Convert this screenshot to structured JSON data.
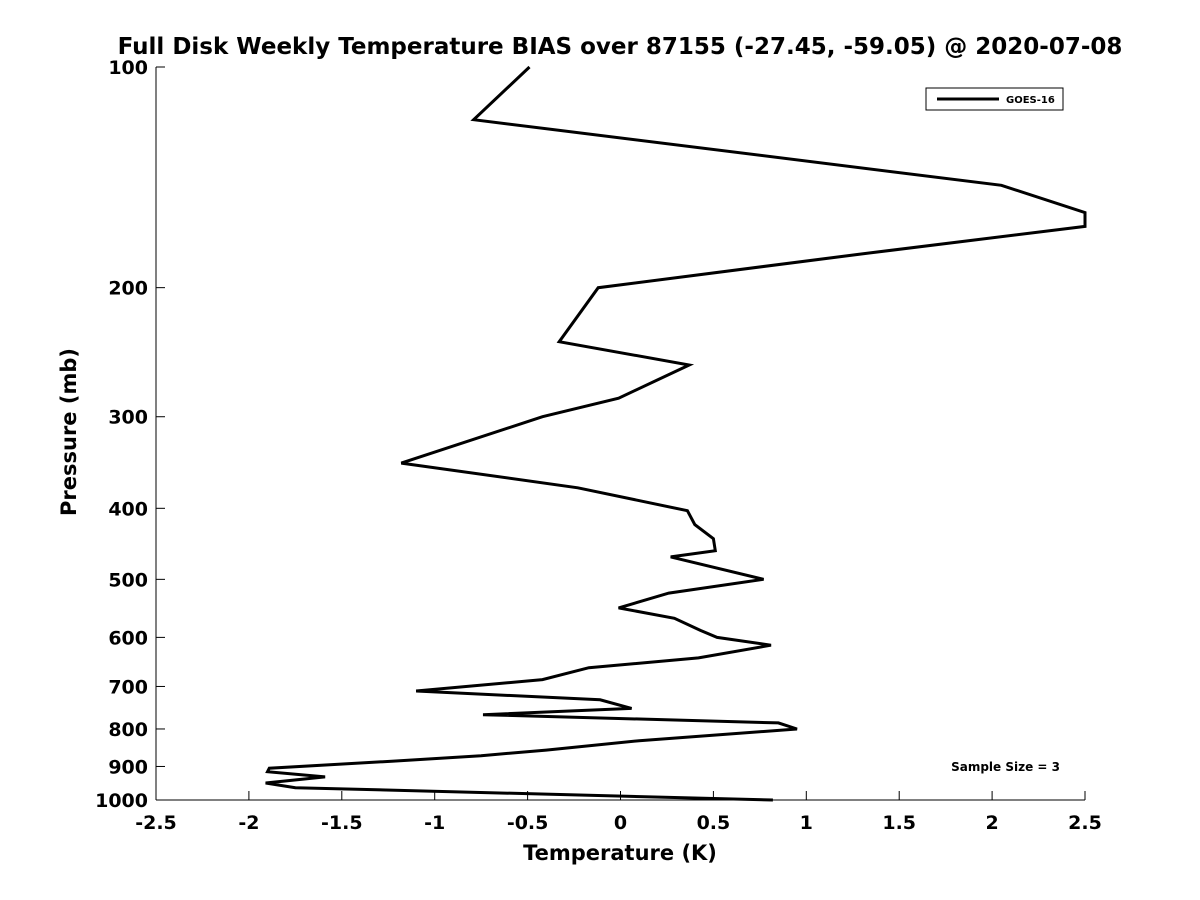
{
  "chart_data": {
    "type": "line",
    "title": "Full Disk Weekly Temperature BIAS over 87155 (-27.45, -59.05) @ 2020-07-08",
    "xlabel": "Temperature (K)",
    "ylabel": "Pressure (mb)",
    "xlim": [
      -2.5,
      2.5
    ],
    "ylim": [
      100,
      1000
    ],
    "y_scale": "log",
    "y_reversed": true,
    "grid": false,
    "legend_position": "top-right",
    "x_ticks": [
      "-2.5",
      "-2",
      "-1.5",
      "-1",
      "-0.5",
      "0",
      "0.5",
      "1",
      "1.5",
      "2",
      "2.5"
    ],
    "x_tick_values": [
      -2.5,
      -2,
      -1.5,
      -1,
      -0.5,
      0,
      0.5,
      1,
      1.5,
      2,
      2.5
    ],
    "y_ticks": [
      "100",
      "200",
      "300",
      "400",
      "500",
      "600",
      "700",
      "800",
      "900",
      "1000"
    ],
    "y_tick_values": [
      100,
      200,
      300,
      400,
      500,
      600,
      700,
      800,
      900,
      1000
    ],
    "annotation": "Sample Size = 3",
    "series": [
      {
        "name": "GOES-16",
        "color": "#000000",
        "x": [
          -0.49,
          -0.79,
          2.05,
          2.5,
          2.5,
          1.29,
          -0.12,
          -0.33,
          0.37,
          -0.01,
          -0.42,
          -1.18,
          -0.23,
          0.36,
          0.4,
          0.5,
          0.51,
          0.27,
          0.77,
          0.26,
          -0.01,
          0.29,
          0.43,
          0.52,
          0.81,
          0.42,
          -0.17,
          -0.42,
          -1.1,
          -0.11,
          0.06,
          -0.74,
          0.85,
          0.95,
          0.1,
          -0.4,
          -0.75,
          -1.22,
          -1.89,
          -1.9,
          -1.59,
          -1.91,
          -1.75,
          0.82
        ],
        "y": [
          100,
          118,
          145,
          158,
          165,
          180,
          200,
          237,
          255,
          283,
          300,
          347,
          375,
          403,
          421,
          440,
          457,
          466,
          500,
          522,
          547,
          565,
          587,
          600,
          615,
          640,
          660,
          685,
          710,
          730,
          750,
          765,
          785,
          800,
          830,
          855,
          870,
          885,
          905,
          915,
          930,
          948,
          962,
          1000
        ]
      }
    ]
  }
}
